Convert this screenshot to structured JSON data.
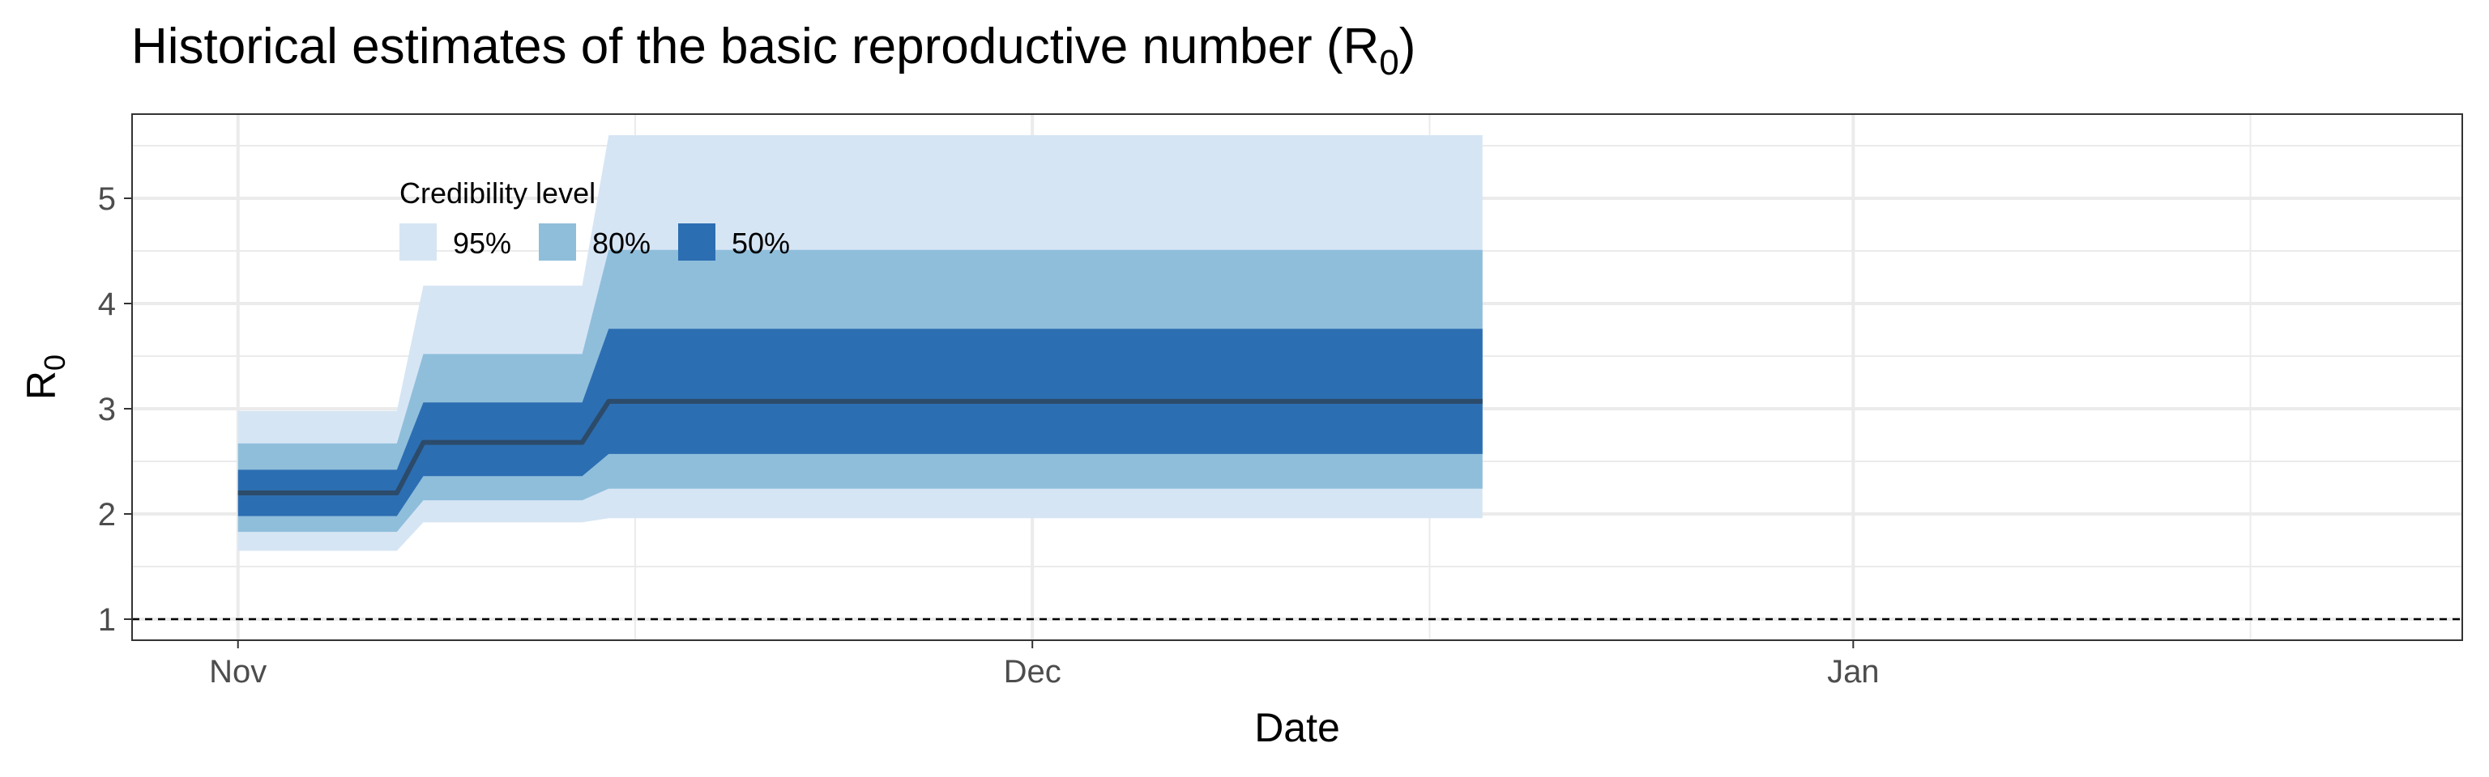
{
  "chart_data": {
    "type": "area",
    "title": "Historical estimates of the basic reproductive number (R",
    "title_subscript": "0",
    "title_suffix": ")",
    "xlabel": "Date",
    "ylabel": "R",
    "ylabel_subscript": "0",
    "x_tick_labels": [
      {
        "date": "2019-11-01",
        "label": "Nov"
      },
      {
        "date": "2019-12-01",
        "label": "Dec"
      },
      {
        "date": "2020-01-01",
        "label": "Jan"
      }
    ],
    "x_minor_gridlines": [
      "2019-11-16",
      "2019-12-16",
      "2020-01-16"
    ],
    "xlim": [
      "2019-10-28",
      "2020-01-24"
    ],
    "y_ticks": [
      1,
      2,
      3,
      4,
      5
    ],
    "ylim": [
      0.8,
      5.8
    ],
    "grid": true,
    "reference_line": {
      "y": 1,
      "style": "dashed"
    },
    "legend": {
      "title": "Credibility level",
      "placement": "top-left inside",
      "entries": [
        {
          "label": "95%",
          "color": "#d6e5f4"
        },
        {
          "label": "80%",
          "color": "#8fbedb"
        },
        {
          "label": "50%",
          "color": "#2c6eb2"
        }
      ]
    },
    "median_color": "#2c4b6a",
    "series": [
      {
        "name": "95%",
        "x": [
          "2019-11-01",
          "2019-11-07",
          "2019-11-08",
          "2019-11-14",
          "2019-11-15",
          "2019-12-18"
        ],
        "lower": [
          1.65,
          1.65,
          1.92,
          1.92,
          1.96,
          1.96
        ],
        "upper": [
          2.98,
          2.98,
          4.17,
          4.17,
          5.6,
          5.6
        ]
      },
      {
        "name": "80%",
        "x": [
          "2019-11-01",
          "2019-11-07",
          "2019-11-08",
          "2019-11-14",
          "2019-11-15",
          "2019-12-18"
        ],
        "lower": [
          1.83,
          1.83,
          2.13,
          2.13,
          2.24,
          2.24
        ],
        "upper": [
          2.67,
          2.67,
          3.52,
          3.52,
          4.51,
          4.51
        ]
      },
      {
        "name": "50%",
        "x": [
          "2019-11-01",
          "2019-11-07",
          "2019-11-08",
          "2019-11-14",
          "2019-11-15",
          "2019-12-18"
        ],
        "lower": [
          1.98,
          1.98,
          2.36,
          2.36,
          2.57,
          2.57
        ],
        "upper": [
          2.42,
          2.42,
          3.06,
          3.06,
          3.76,
          3.76
        ]
      },
      {
        "name": "median",
        "x": [
          "2019-11-01",
          "2019-11-07",
          "2019-11-08",
          "2019-11-14",
          "2019-11-15",
          "2019-12-18"
        ],
        "values": [
          2.2,
          2.2,
          2.68,
          2.68,
          3.07,
          3.07
        ]
      }
    ]
  }
}
